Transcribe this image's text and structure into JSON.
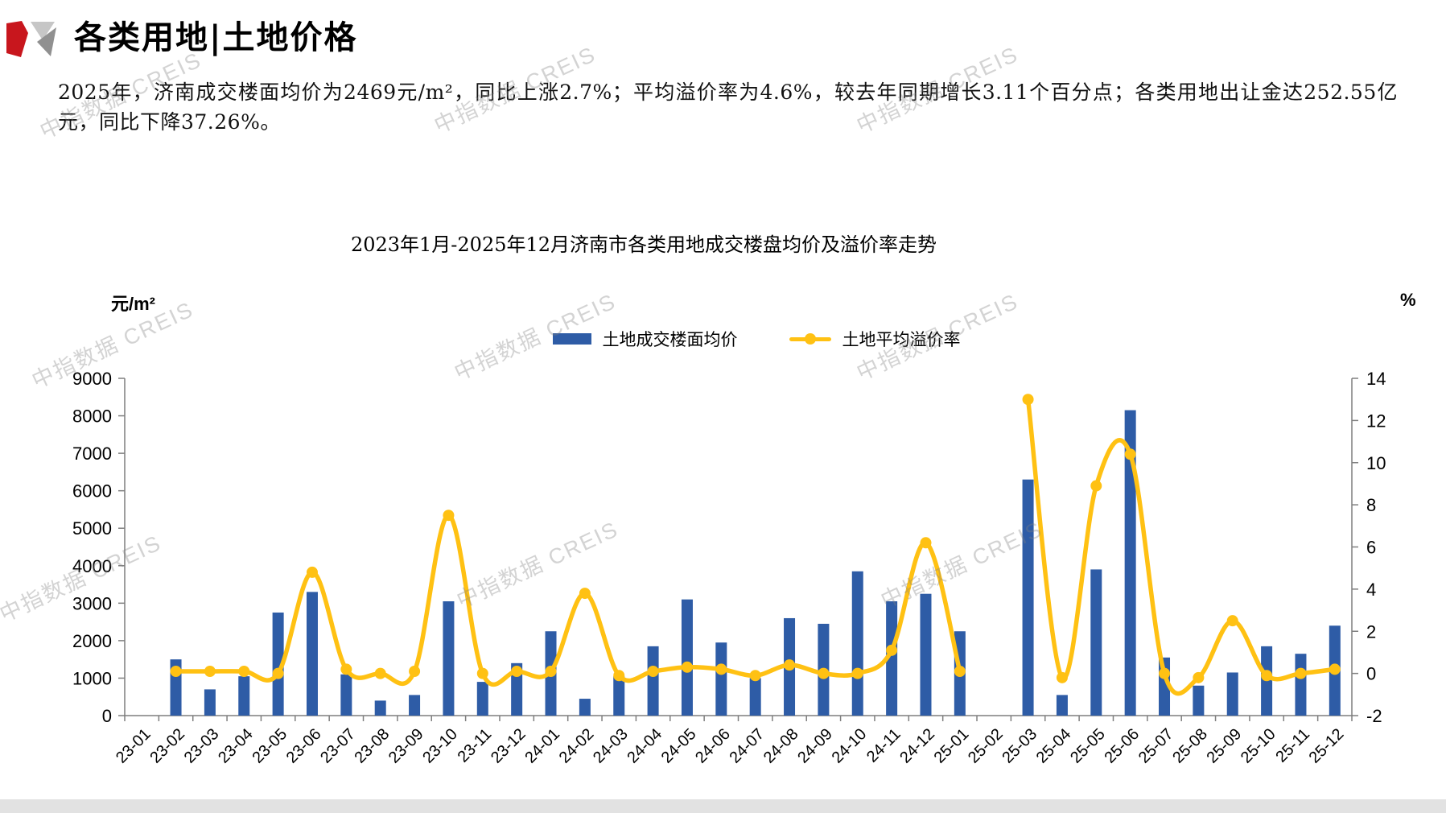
{
  "header": {
    "title": "各类用地|土地价格"
  },
  "summary": "2025年，济南成交楼面均价为2469元/m²，同比上涨2.7%；平均溢价率为4.6%，较去年同期增长3.11个百分点；各类用地出让金达252.55亿元，同比下降37.26%。",
  "watermark": "中指数据 CREIS",
  "chart_data": {
    "type": "bar+line",
    "title": "2023年1月-2025年12月济南市各类用地成交楼盘均价及溢价率走势",
    "legend_position": "top",
    "grid": false,
    "left_axis": {
      "unit": "元/m²",
      "min": 0,
      "max": 9000,
      "step": 1000,
      "ticks": [
        0,
        1000,
        2000,
        3000,
        4000,
        5000,
        6000,
        7000,
        8000,
        9000
      ]
    },
    "right_axis": {
      "unit": "%",
      "min": -2,
      "max": 14,
      "step": 2,
      "ticks": [
        -2,
        0,
        2,
        4,
        6,
        8,
        10,
        12,
        14
      ]
    },
    "categories": [
      "23-01",
      "23-02",
      "23-03",
      "23-04",
      "23-05",
      "23-06",
      "23-07",
      "23-08",
      "23-09",
      "23-10",
      "23-11",
      "23-12",
      "24-01",
      "24-02",
      "24-03",
      "24-04",
      "24-05",
      "24-06",
      "24-07",
      "24-08",
      "24-09",
      "24-10",
      "24-11",
      "24-12",
      "25-01",
      "25-02",
      "25-03",
      "25-04",
      "25-05",
      "25-06",
      "25-07",
      "25-08",
      "25-09",
      "25-10",
      "25-11",
      "25-12"
    ],
    "series": [
      {
        "name": "土地成交楼面均价",
        "type": "bar",
        "axis": "left",
        "color": "#2E5CA6",
        "values": [
          null,
          1500,
          700,
          1050,
          2750,
          3300,
          1100,
          400,
          550,
          3050,
          900,
          1400,
          2250,
          450,
          1050,
          1850,
          3100,
          1950,
          1000,
          2600,
          2450,
          3850,
          3050,
          3250,
          2250,
          null,
          6300,
          550,
          3900,
          8150,
          1550,
          800,
          1150,
          1850,
          1650,
          2400
        ]
      },
      {
        "name": "土地平均溢价率",
        "type": "line",
        "axis": "right",
        "color": "#FFC113",
        "values": [
          null,
          0.1,
          0.1,
          0.1,
          0.0,
          4.8,
          0.2,
          0.0,
          0.1,
          7.5,
          0.0,
          0.1,
          0.1,
          3.8,
          -0.1,
          0.1,
          0.3,
          0.2,
          -0.1,
          0.4,
          0.0,
          0.0,
          1.1,
          6.2,
          0.1,
          null,
          13.0,
          -0.2,
          8.9,
          10.4,
          0.0,
          -0.2,
          2.5,
          -0.1,
          0.0,
          0.2
        ]
      }
    ],
    "axis_color": "#7f7f7f"
  }
}
